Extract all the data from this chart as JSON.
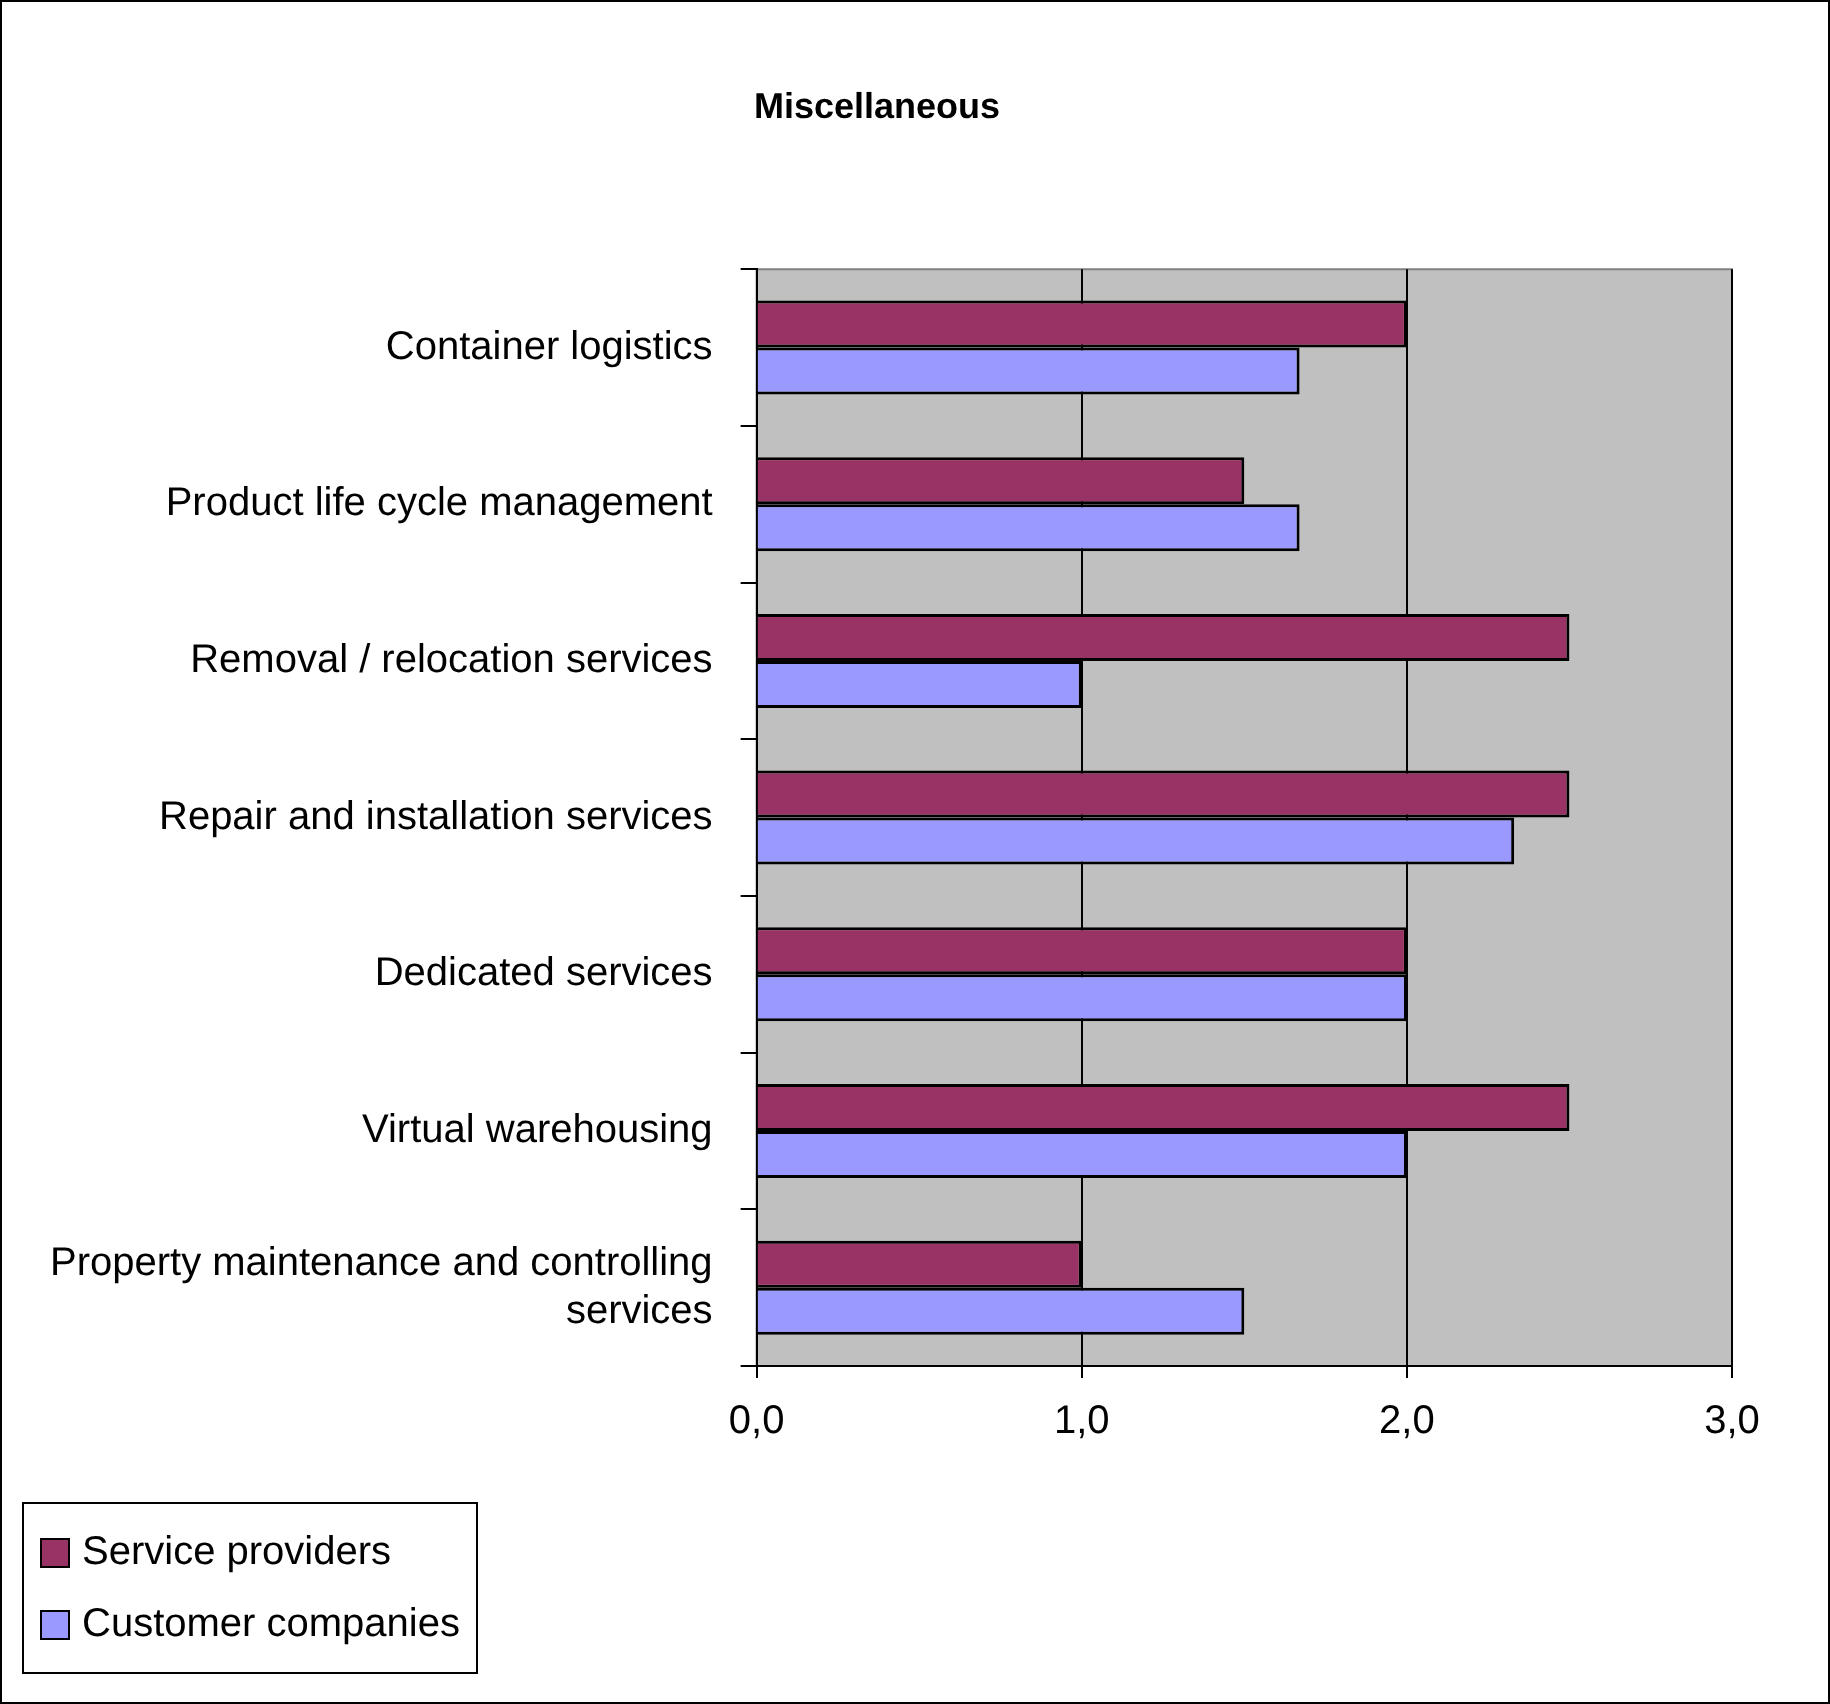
{
  "chart_data": {
    "type": "bar",
    "orientation": "horizontal",
    "title": "Miscellaneous",
    "categories": [
      "Container logistics",
      "Product life cycle management",
      "Removal / relocation services",
      "Repair and installation services",
      "Dedicated services",
      "Virtual warehousing",
      "Property maintenance and controlling services"
    ],
    "series": [
      {
        "name": "Service providers",
        "color": "#993366",
        "values": [
          2.0,
          1.5,
          2.5,
          2.5,
          2.0,
          2.5,
          1.0
        ]
      },
      {
        "name": "Customer companies",
        "color": "#9999ff",
        "values": [
          1.67,
          1.67,
          1.0,
          2.33,
          2.0,
          2.0,
          1.5
        ]
      }
    ],
    "xlim": [
      0,
      3
    ],
    "xticks": [
      {
        "value": 0,
        "label": "0,0"
      },
      {
        "value": 1,
        "label": "1,0"
      },
      {
        "value": 2,
        "label": "2,0"
      },
      {
        "value": 3,
        "label": "3,0"
      }
    ],
    "grid": "x",
    "legend": "bottom left"
  }
}
